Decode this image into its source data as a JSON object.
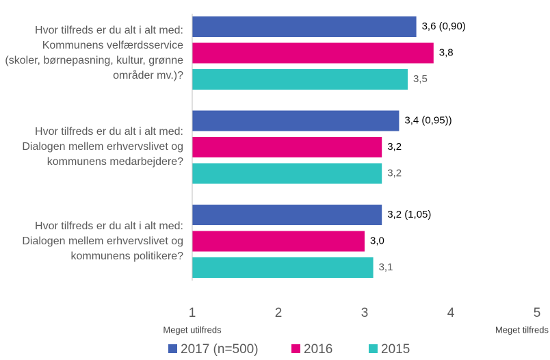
{
  "chart_data": {
    "type": "bar",
    "orientation": "horizontal",
    "categories": [
      "Hvor tilfreds er du alt i alt med: Kommunens velfærdsservice (skoler, børnepasning, kultur, grønne områder mv.)?",
      "Hvor tilfreds er du alt i alt med: Dialogen mellem erhvervslivet og kommunens medarbejdere?",
      "Hvor tilfreds er du alt i alt med: Dialogen mellem erhvervslivet og kommunens politikere?"
    ],
    "series": [
      {
        "name": "2017 (n=500)",
        "color": "#4262b4",
        "values": [
          3.6,
          3.4,
          3.2
        ],
        "value_labels": [
          "3,6 (0,90)",
          "3,4 (0,95))",
          "3,2  (1,05)"
        ]
      },
      {
        "name": "2016",
        "color": "#e4007d",
        "values": [
          3.8,
          3.2,
          3.0
        ],
        "value_labels": [
          "3,8",
          "3,2",
          "3,0"
        ]
      },
      {
        "name": "2015",
        "color": "#2ec3bf",
        "values": [
          3.5,
          3.2,
          3.1
        ],
        "value_labels": [
          "3,5",
          "3,2",
          "3,1"
        ]
      }
    ],
    "xlim": [
      1,
      5
    ],
    "xticks": [
      1,
      2,
      3,
      4,
      5
    ],
    "annotations": [
      "Meget utilfreds",
      "Meget tilfreds"
    ],
    "legend": "bottom"
  }
}
